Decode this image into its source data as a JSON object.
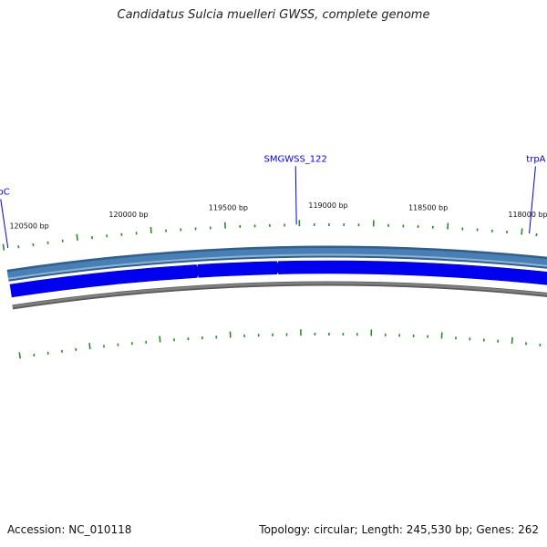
{
  "title": "Candidatus Sulcia muelleri GWSS, complete genome",
  "footer": {
    "accession": "Accession: NC_010118",
    "summary": "Topology: circular; Length: 245,530 bp; Genes: 262"
  },
  "position_labels": [
    {
      "text": "120500 bp",
      "bp": 120500
    },
    {
      "text": "120000 bp",
      "bp": 120000
    },
    {
      "text": "119500 bp",
      "bp": 119500
    },
    {
      "text": "119000 bp",
      "bp": 119000
    },
    {
      "text": "118500 bp",
      "bp": 118500
    },
    {
      "text": "118000 bp",
      "bp": 118000
    }
  ],
  "gene_labels": [
    {
      "text": "trpC",
      "bp": 120620
    },
    {
      "text": "SMGWSS_122",
      "bp": 119160
    },
    {
      "text": "trpA",
      "bp": 117985
    }
  ],
  "colors": {
    "forward_track": "#4a7fb5",
    "gene_feature": "#0000ee",
    "backbone": "#808080",
    "ticks": "#2a8a2a",
    "gene_label": "#0000dd"
  }
}
